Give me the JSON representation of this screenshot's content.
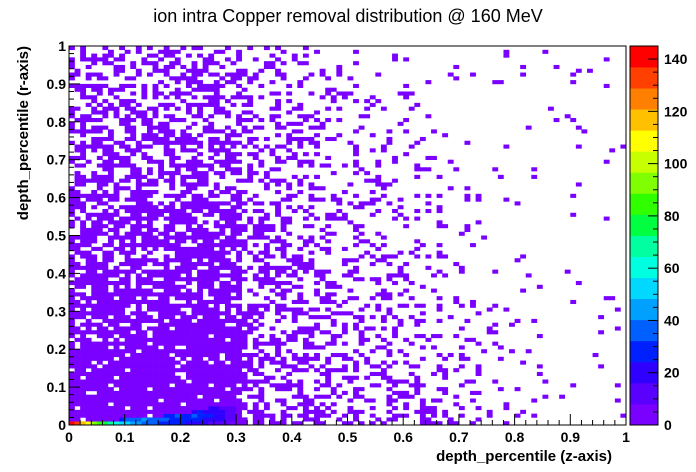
{
  "chart_data": {
    "type": "heatmap",
    "title": "ion intra Copper removal distribution @ 160 MeV",
    "xlabel": "depth_percentile (z-axis)",
    "ylabel": "depth_percentile (r-axis)",
    "xlim": [
      0,
      1
    ],
    "ylim": [
      0,
      1
    ],
    "x_ticks": [
      "0",
      "0.1",
      "0.2",
      "0.3",
      "0.4",
      "0.5",
      "0.6",
      "0.7",
      "0.8",
      "0.9",
      "1"
    ],
    "y_ticks": [
      "0",
      "0.1",
      "0.2",
      "0.3",
      "0.4",
      "0.5",
      "0.6",
      "0.7",
      "0.8",
      "0.9",
      "1"
    ],
    "z_ticks": [
      "0",
      "20",
      "40",
      "60",
      "80",
      "100",
      "120",
      "140"
    ],
    "zlim": [
      0,
      145
    ],
    "grid": false,
    "bins": {
      "nx": 100,
      "ny": 100
    },
    "colormap": [
      "#7a00ff",
      "#5a00ff",
      "#3000ff",
      "#0020ff",
      "#0060ff",
      "#00a0ff",
      "#00d8ff",
      "#00ffe0",
      "#00ffa0",
      "#00ff40",
      "#30ff00",
      "#80ff00",
      "#c8ff00",
      "#ffff00",
      "#ffc000",
      "#ff8000",
      "#ff4000",
      "#ff0000"
    ],
    "bright_cells": [
      {
        "x": 0.005,
        "y": 0.005,
        "value": 140
      },
      {
        "x": 0.015,
        "y": 0.005,
        "value": 135
      },
      {
        "x": 0.025,
        "y": 0.005,
        "value": 120
      },
      {
        "x": 0.035,
        "y": 0.005,
        "value": 110
      },
      {
        "x": 0.045,
        "y": 0.005,
        "value": 95
      },
      {
        "x": 0.055,
        "y": 0.005,
        "value": 85
      },
      {
        "x": 0.065,
        "y": 0.005,
        "value": 75
      },
      {
        "x": 0.075,
        "y": 0.005,
        "value": 65
      },
      {
        "x": 0.085,
        "y": 0.005,
        "value": 60
      },
      {
        "x": 0.095,
        "y": 0.005,
        "value": 55
      },
      {
        "x": 0.105,
        "y": 0.005,
        "value": 50
      },
      {
        "x": 0.115,
        "y": 0.005,
        "value": 45
      },
      {
        "x": 0.125,
        "y": 0.005,
        "value": 45
      },
      {
        "x": 0.135,
        "y": 0.005,
        "value": 40
      },
      {
        "x": 0.145,
        "y": 0.005,
        "value": 38
      },
      {
        "x": 0.155,
        "y": 0.005,
        "value": 35
      },
      {
        "x": 0.165,
        "y": 0.005,
        "value": 32
      },
      {
        "x": 0.175,
        "y": 0.005,
        "value": 30
      },
      {
        "x": 0.185,
        "y": 0.005,
        "value": 28
      },
      {
        "x": 0.195,
        "y": 0.005,
        "value": 27
      },
      {
        "x": 0.205,
        "y": 0.005,
        "value": 25
      },
      {
        "x": 0.215,
        "y": 0.005,
        "value": 24
      },
      {
        "x": 0.225,
        "y": 0.005,
        "value": 22
      },
      {
        "x": 0.235,
        "y": 0.005,
        "value": 20
      },
      {
        "x": 0.245,
        "y": 0.005,
        "value": 18
      },
      {
        "x": 0.255,
        "y": 0.005,
        "value": 16
      },
      {
        "x": 0.265,
        "y": 0.005,
        "value": 14
      },
      {
        "x": 0.275,
        "y": 0.005,
        "value": 12
      },
      {
        "x": 0.285,
        "y": 0.005,
        "value": 10
      },
      {
        "x": 0.295,
        "y": 0.005,
        "value": 8
      },
      {
        "x": 0.095,
        "y": 0.015,
        "value": 30
      },
      {
        "x": 0.105,
        "y": 0.015,
        "value": 35
      },
      {
        "x": 0.115,
        "y": 0.015,
        "value": 38
      },
      {
        "x": 0.125,
        "y": 0.015,
        "value": 40
      },
      {
        "x": 0.135,
        "y": 0.015,
        "value": 42
      },
      {
        "x": 0.145,
        "y": 0.015,
        "value": 40
      },
      {
        "x": 0.155,
        "y": 0.015,
        "value": 38
      },
      {
        "x": 0.165,
        "y": 0.015,
        "value": 35
      },
      {
        "x": 0.175,
        "y": 0.015,
        "value": 33
      },
      {
        "x": 0.185,
        "y": 0.015,
        "value": 30
      },
      {
        "x": 0.195,
        "y": 0.015,
        "value": 30
      },
      {
        "x": 0.205,
        "y": 0.015,
        "value": 28
      },
      {
        "x": 0.215,
        "y": 0.015,
        "value": 28
      },
      {
        "x": 0.225,
        "y": 0.015,
        "value": 26
      },
      {
        "x": 0.235,
        "y": 0.015,
        "value": 25
      },
      {
        "x": 0.245,
        "y": 0.015,
        "value": 24
      },
      {
        "x": 0.255,
        "y": 0.015,
        "value": 22
      },
      {
        "x": 0.265,
        "y": 0.015,
        "value": 20
      },
      {
        "x": 0.275,
        "y": 0.015,
        "value": 18
      },
      {
        "x": 0.285,
        "y": 0.015,
        "value": 15
      },
      {
        "x": 0.295,
        "y": 0.015,
        "value": 12
      },
      {
        "x": 0.175,
        "y": 0.025,
        "value": 28
      },
      {
        "x": 0.185,
        "y": 0.025,
        "value": 32
      },
      {
        "x": 0.195,
        "y": 0.025,
        "value": 34
      },
      {
        "x": 0.205,
        "y": 0.025,
        "value": 32
      },
      {
        "x": 0.215,
        "y": 0.025,
        "value": 30
      },
      {
        "x": 0.225,
        "y": 0.025,
        "value": 33
      },
      {
        "x": 0.235,
        "y": 0.025,
        "value": 30
      },
      {
        "x": 0.245,
        "y": 0.025,
        "value": 28
      },
      {
        "x": 0.255,
        "y": 0.025,
        "value": 25
      },
      {
        "x": 0.265,
        "y": 0.025,
        "value": 22
      },
      {
        "x": 0.275,
        "y": 0.025,
        "value": 20
      },
      {
        "x": 0.285,
        "y": 0.025,
        "value": 16
      },
      {
        "x": 0.295,
        "y": 0.025,
        "value": 12
      },
      {
        "x": 0.225,
        "y": 0.035,
        "value": 22
      },
      {
        "x": 0.235,
        "y": 0.035,
        "value": 25
      },
      {
        "x": 0.245,
        "y": 0.035,
        "value": 24
      },
      {
        "x": 0.255,
        "y": 0.035,
        "value": 22
      },
      {
        "x": 0.265,
        "y": 0.035,
        "value": 20
      },
      {
        "x": 0.275,
        "y": 0.035,
        "value": 18
      },
      {
        "x": 0.285,
        "y": 0.035,
        "value": 15
      },
      {
        "x": 0.295,
        "y": 0.035,
        "value": 12
      },
      {
        "x": 0.255,
        "y": 0.045,
        "value": 18
      },
      {
        "x": 0.265,
        "y": 0.045,
        "value": 18
      },
      {
        "x": 0.275,
        "y": 0.045,
        "value": 16
      },
      {
        "x": 0.285,
        "y": 0.045,
        "value": 14
      },
      {
        "x": 0.295,
        "y": 0.045,
        "value": 10
      }
    ]
  }
}
